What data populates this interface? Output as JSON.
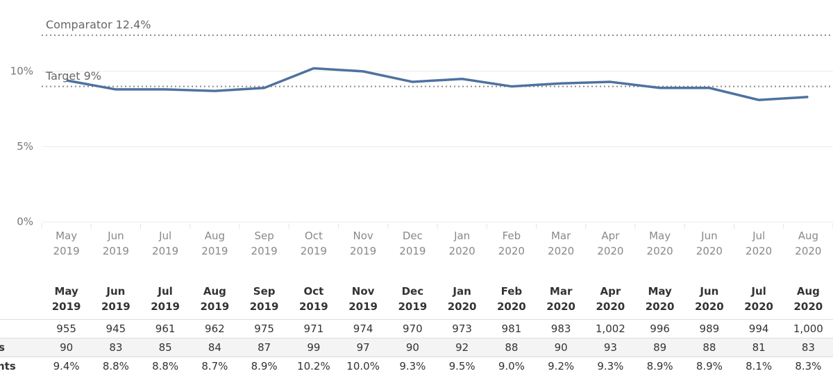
{
  "chart_data": {
    "type": "line",
    "categories": [
      "May 2019",
      "Jun 2019",
      "Jul 2019",
      "Aug 2019",
      "Sep 2019",
      "Oct 2019",
      "Nov 2019",
      "Dec 2019",
      "Jan 2020",
      "Feb 2020",
      "Mar 2020",
      "Apr 2020",
      "May 2020",
      "Jun 2020",
      "Jul 2020",
      "Aug 2020"
    ],
    "values": [
      9.4,
      8.8,
      8.8,
      8.7,
      8.9,
      10.2,
      10.0,
      9.3,
      9.5,
      9.0,
      9.2,
      9.3,
      8.9,
      8.9,
      8.1,
      8.3
    ],
    "color": "#4e72a0",
    "ylim": [
      0,
      14
    ],
    "yticks": [
      {
        "value": 0,
        "label": "0%"
      },
      {
        "value": 5,
        "label": "5%"
      },
      {
        "value": 10,
        "label": "10%"
      }
    ],
    "grid": true,
    "reference_lines": [
      {
        "label": "Comparator 12.4%",
        "value": 12.4
      },
      {
        "label": "Target 9%",
        "value": 9
      }
    ]
  },
  "table": {
    "header": [
      "May 2019",
      "Jun 2019",
      "Jul 2019",
      "Aug 2019",
      "Sep 2019",
      "Oct 2019",
      "Nov 2019",
      "Dec 2019",
      "Jan 2020",
      "Feb 2020",
      "Mar 2020",
      "Apr 2020",
      "May 2020",
      "Jun 2020",
      "Jul 2020",
      "Aug 2020"
    ],
    "rows": [
      {
        "cells": [
          "955",
          "945",
          "961",
          "962",
          "975",
          "971",
          "974",
          "970",
          "973",
          "981",
          "983",
          "1,002",
          "996",
          "989",
          "994",
          "1,000"
        ]
      },
      {
        "label": "s",
        "cells": [
          "90",
          "83",
          "85",
          "84",
          "87",
          "99",
          "97",
          "90",
          "92",
          "88",
          "90",
          "93",
          "89",
          "88",
          "81",
          "83"
        ]
      },
      {
        "label": "nts",
        "cells": [
          "9.4%",
          "8.8%",
          "8.8%",
          "8.7%",
          "8.9%",
          "10.2%",
          "10.0%",
          "9.3%",
          "9.5%",
          "9.0%",
          "9.2%",
          "9.3%",
          "8.9%",
          "8.9%",
          "8.1%",
          "8.3%"
        ]
      }
    ]
  }
}
